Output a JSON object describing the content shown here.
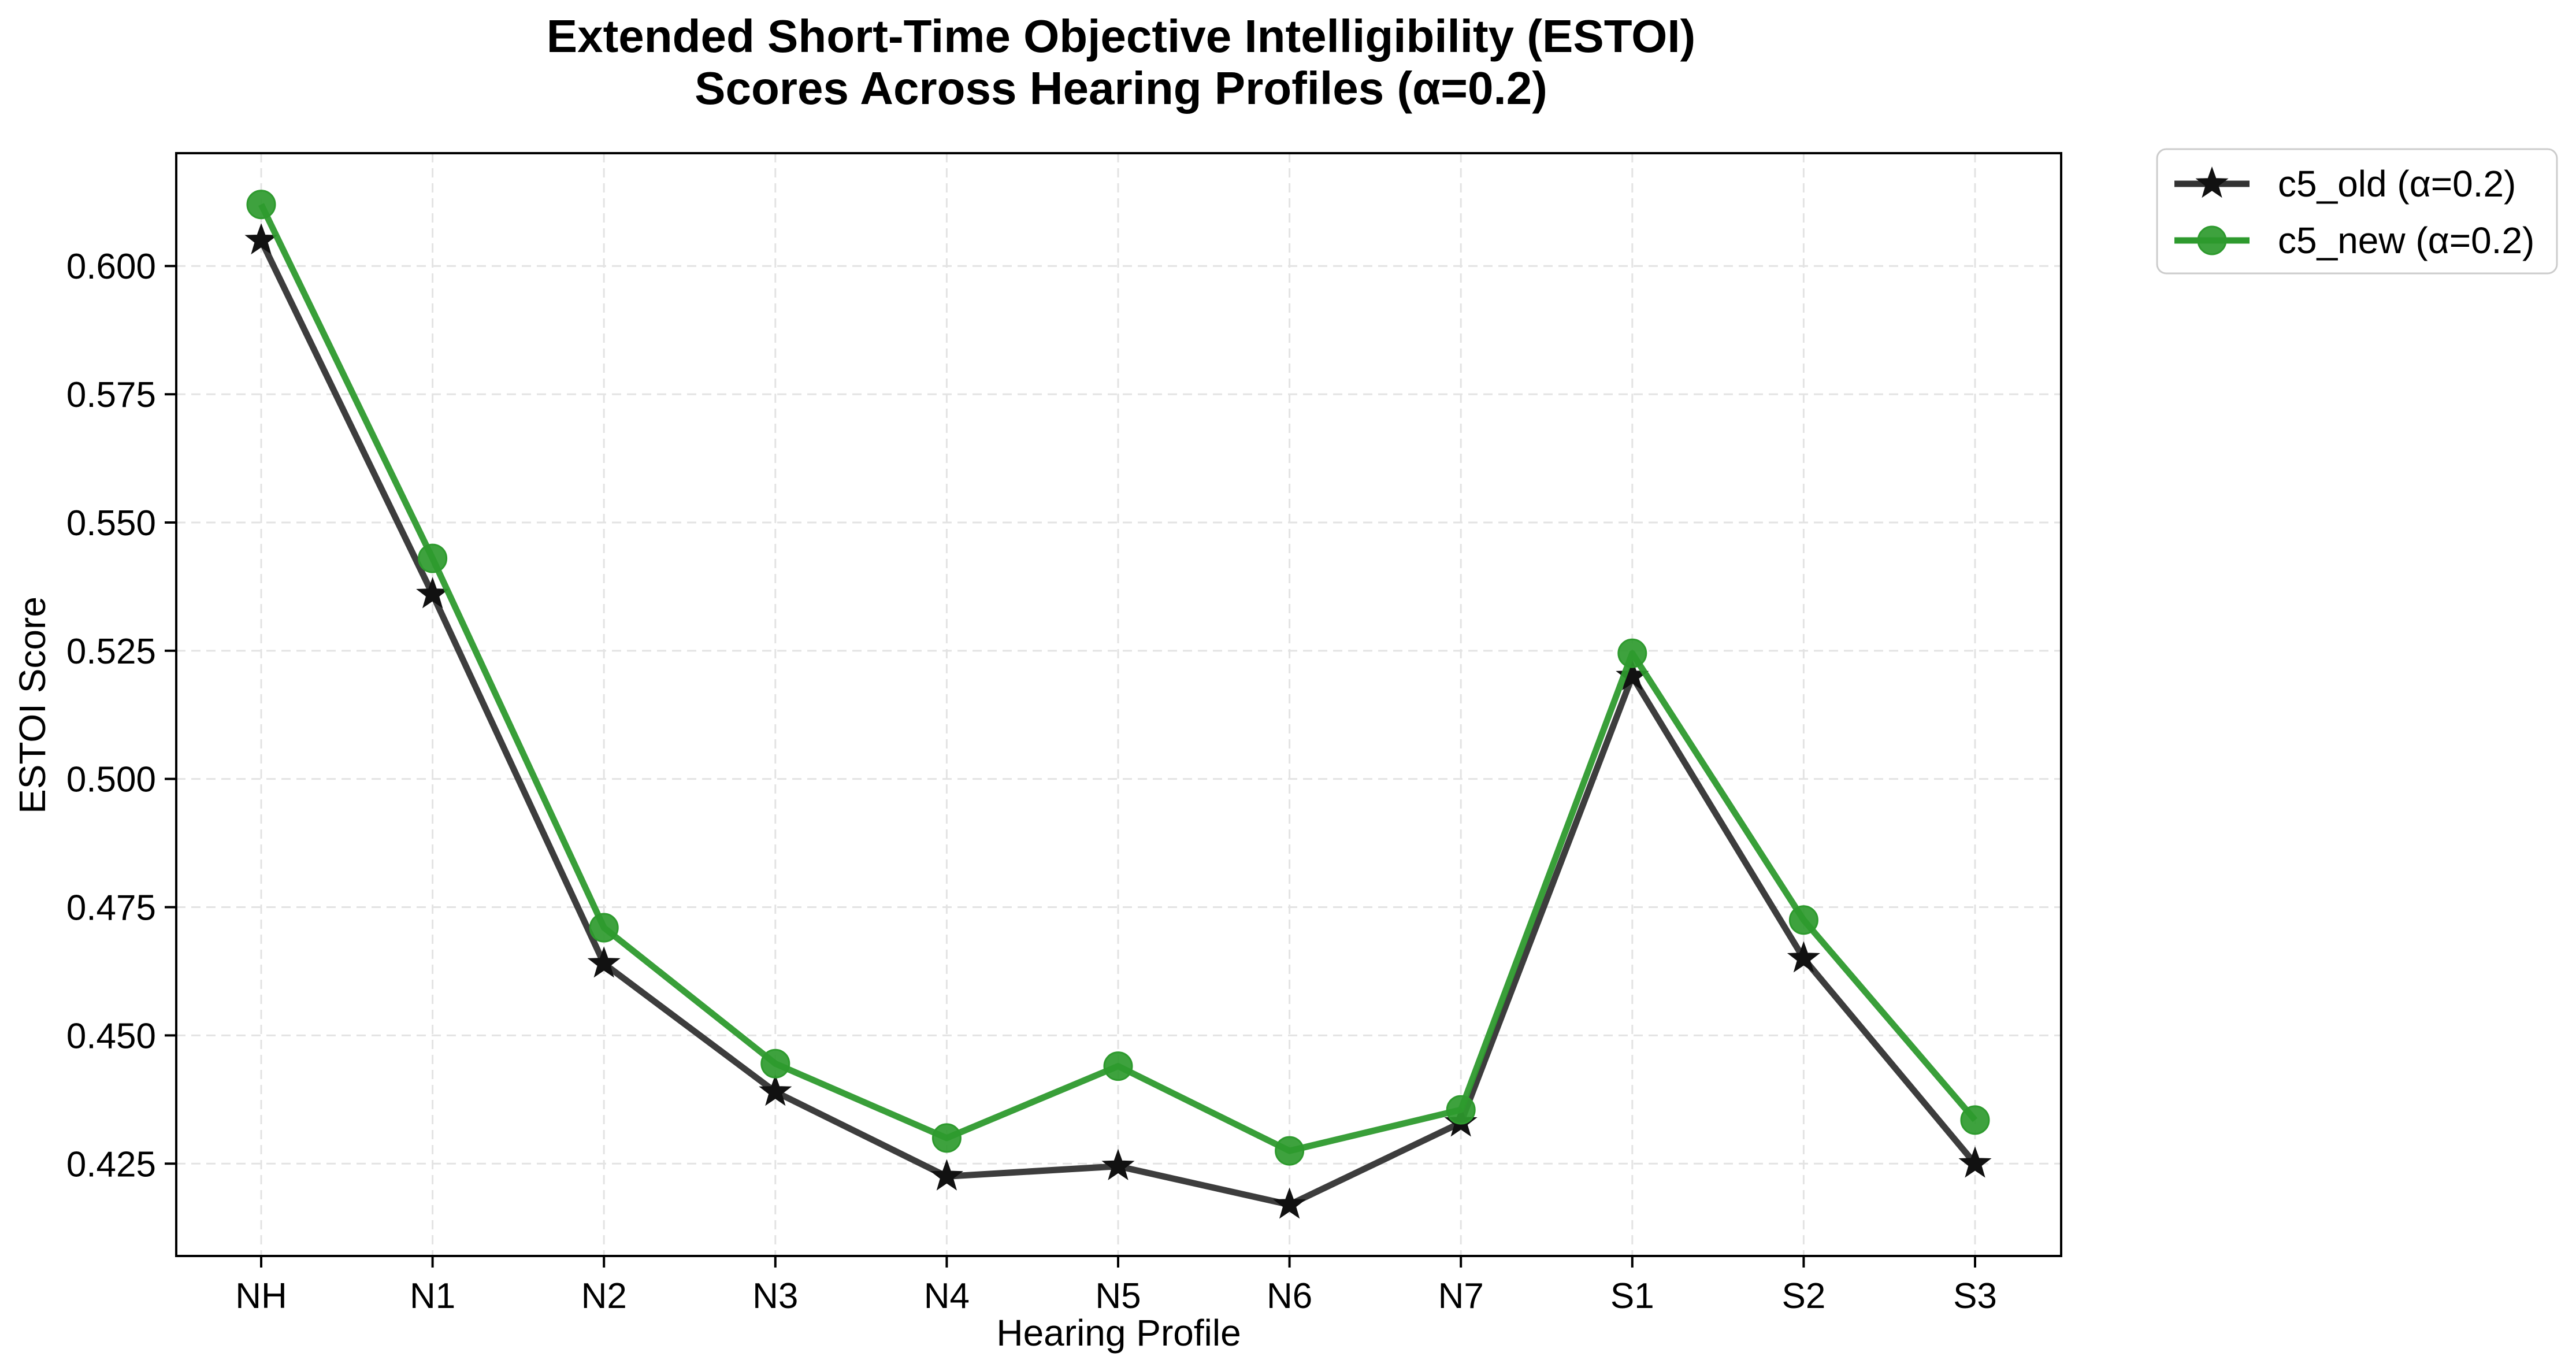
{
  "chart_data": {
    "type": "line",
    "title": "Extended Short-Time Objective Intelligibility (ESTOI)",
    "subtitle": "Scores Across Hearing Profiles (α=0.2)",
    "xlabel": "Hearing Profile",
    "ylabel": "ESTOI Score",
    "categories": [
      "NH",
      "N1",
      "N2",
      "N3",
      "N4",
      "N5",
      "N6",
      "N7",
      "S1",
      "S2",
      "S3"
    ],
    "ylim": [
      0.407,
      0.622
    ],
    "yticks": [
      0.425,
      0.45,
      0.475,
      0.5,
      0.525,
      0.55,
      0.575,
      0.6
    ],
    "ytick_labels": [
      "0.425",
      "0.450",
      "0.475",
      "0.500",
      "0.525",
      "0.550",
      "0.575",
      "0.600"
    ],
    "grid": true,
    "legend_position": "outside-top-right",
    "series": [
      {
        "name": "c5_old (α=0.2)",
        "color": "#333333",
        "marker": "star",
        "values": [
          0.605,
          0.536,
          0.464,
          0.439,
          0.4225,
          0.4245,
          0.417,
          0.433,
          0.52,
          0.465,
          0.425
        ]
      },
      {
        "name": "c5_new (α=0.2)",
        "color": "#2e9a2e",
        "marker": "circle",
        "values": [
          0.612,
          0.543,
          0.471,
          0.4445,
          0.43,
          0.444,
          0.4275,
          0.4355,
          0.5245,
          0.4725,
          0.4335
        ]
      }
    ]
  }
}
